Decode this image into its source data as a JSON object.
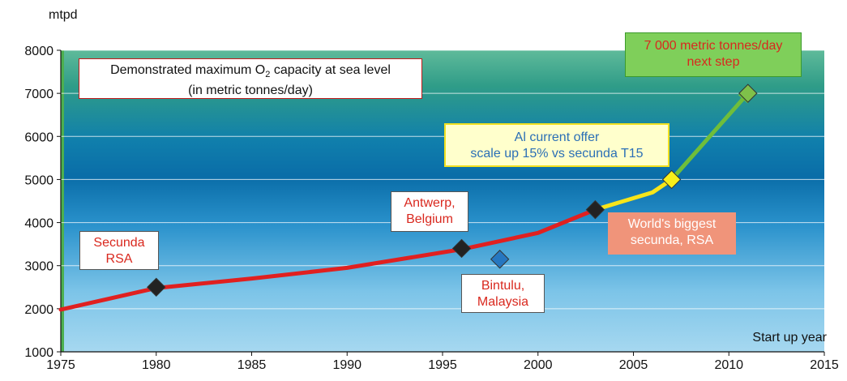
{
  "chart_data": {
    "type": "line",
    "ylabel": "mtpd",
    "xlabel": "Start up year",
    "xlim": [
      1975,
      2015
    ],
    "ylim": [
      1000,
      8000
    ],
    "x_ticks": [
      "1975",
      "1980",
      "1985",
      "1990",
      "1995",
      "2000",
      "2005",
      "2010",
      "2015"
    ],
    "y_ticks": [
      "1000",
      "2000",
      "3000",
      "4000",
      "5000",
      "6000",
      "7000",
      "8000"
    ],
    "grid": "horizontal",
    "series": [
      {
        "color": "#e02020",
        "x": [
          1975,
          1980,
          1985,
          1990,
          1996,
          2000,
          2003
        ],
        "y": [
          1980,
          2480,
          2700,
          2950,
          3380,
          3760,
          4300
        ]
      },
      {
        "color": "#f7e51a",
        "x": [
          2003,
          2006,
          2007
        ],
        "y": [
          4300,
          4700,
          5000
        ]
      },
      {
        "color": "#6fbe3a",
        "x": [
          2007,
          2011
        ],
        "y": [
          5000,
          7000
        ]
      }
    ],
    "markers": [
      {
        "x": 1980,
        "y": 2500,
        "color": "#222222",
        "label": "Secunda RSA"
      },
      {
        "x": 1996,
        "y": 3400,
        "color": "#222222",
        "label": "Antwerp, Belgium"
      },
      {
        "x": 1998,
        "y": 3150,
        "color": "#2677c0",
        "label": "Bintulu, Malaysia"
      },
      {
        "x": 2003,
        "y": 4300,
        "color": "#222222",
        "label": "World's biggest secunda, RSA"
      },
      {
        "x": 2007,
        "y": 5000,
        "color": "#f7ef1a",
        "label": "AI current offer"
      },
      {
        "x": 2011,
        "y": 7000,
        "color": "#7fc04a",
        "label": "7 000 metric tonnes/day next step"
      }
    ]
  },
  "annotations": {
    "capacity_line1_pre": "Demonstrated maximum O",
    "capacity_sub": "2",
    "capacity_line1_post": " capacity at sea level",
    "capacity_line2": "(in metric tonnes/day)",
    "secunda_line1": "Secunda",
    "secunda_line2": "RSA",
    "antwerp_line1": "Antwerp,",
    "antwerp_line2": "Belgium",
    "bintulu_line1": "Bintulu,",
    "bintulu_line2": "Malaysia",
    "offer_line1": "Al current offer",
    "offer_line2": "scale up 15% vs secunda T15",
    "biggest_line1": "World's biggest",
    "biggest_line2": "secunda, RSA",
    "next_line1": "7 000 metric tonnes/day",
    "next_line2": "next step"
  }
}
